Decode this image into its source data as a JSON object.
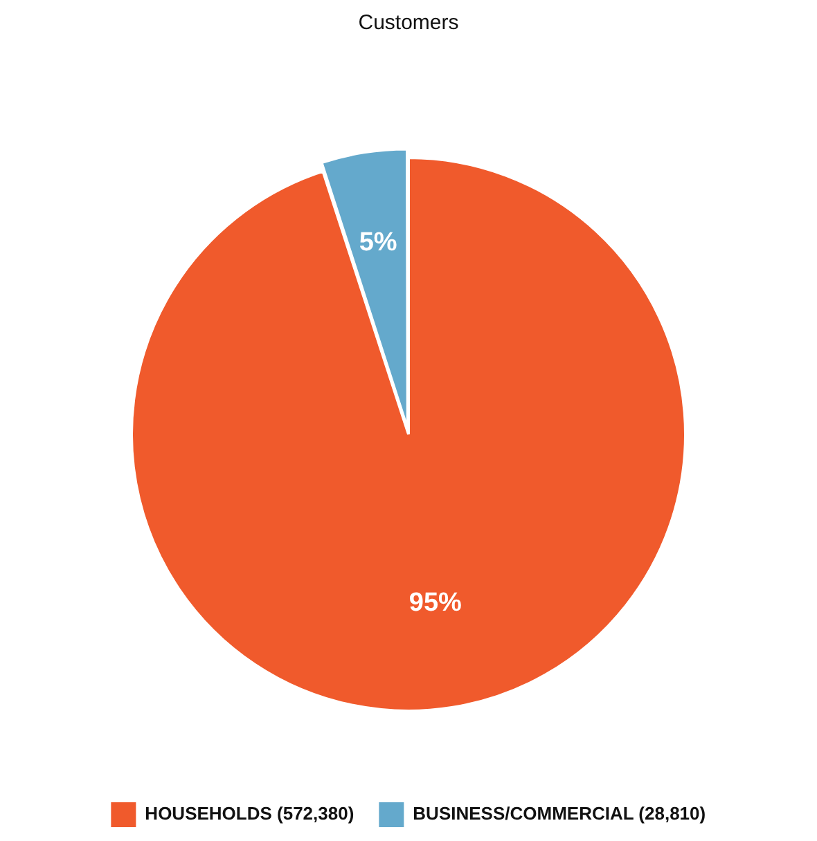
{
  "chart_data": {
    "type": "pie",
    "title": "Customers",
    "categories": [
      "HOUSEHOLDS (572,380)",
      "BUSINESS/COMMERCIAL (28,810)"
    ],
    "values": [
      95,
      5
    ],
    "colors": [
      "#f05a2c",
      "#64a9cc"
    ],
    "value_labels": [
      "95%",
      "5%"
    ],
    "legend": "bottom"
  }
}
